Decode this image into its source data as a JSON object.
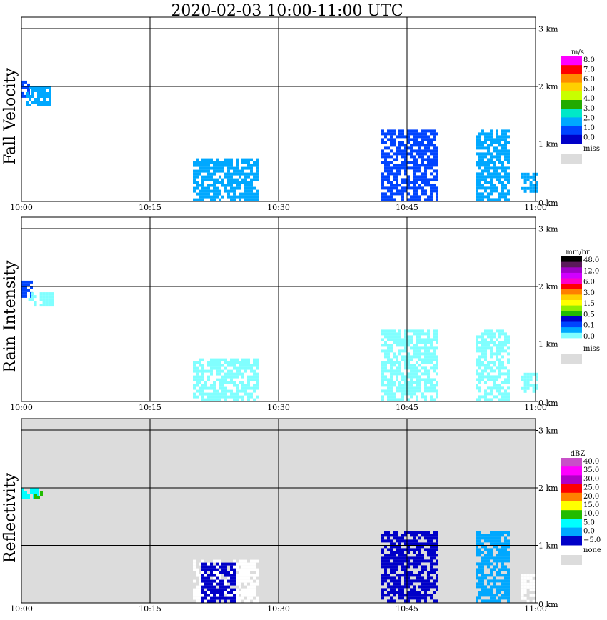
{
  "title": "2020-02-03   10:00-11:00 UTC",
  "x_ticks": [
    "10:00",
    "10:15",
    "10:30",
    "10:45",
    "11:00"
  ],
  "y_ticks": [
    "0 km",
    "1 km",
    "2 km",
    "3 km"
  ],
  "chart_data": [
    {
      "type": "heatmap",
      "panel": "Fall Velocity",
      "ylabel": "Fall Velocity",
      "x_range": [
        "10:00",
        "11:00"
      ],
      "y_range_km": [
        0,
        3.2
      ],
      "colorbar": {
        "unit": "m/s",
        "labels": [
          "8.0",
          "7.0",
          "6.0",
          "5.0",
          "4.0",
          "3.0",
          "2.0",
          "1.0",
          "0.0",
          "miss"
        ],
        "colors": [
          "#ff00ff",
          "#ff0000",
          "#ff8c00",
          "#ffd000",
          "#c8ff00",
          "#22aa00",
          "#00e8c8",
          "#00a8ff",
          "#0044ff",
          "#0000c8",
          "#dcdcdc"
        ]
      },
      "background": "#ffffff",
      "echoes": [
        {
          "t0": 0.0,
          "t1": 0.8,
          "h0": 1.85,
          "h1": 2.1,
          "color": "#0044ff"
        },
        {
          "t0": 0.5,
          "t1": 3.5,
          "h0": 1.7,
          "h1": 2.0,
          "color": "#00a8ff"
        },
        {
          "t0": 20.0,
          "t1": 27.5,
          "h0": 0.02,
          "h1": 0.75,
          "color": "#00a8ff"
        },
        {
          "t0": 42.0,
          "t1": 48.5,
          "h0": 0.05,
          "h1": 1.25,
          "color": "#0044ff"
        },
        {
          "t0": 53.0,
          "t1": 57.0,
          "h0": 0.05,
          "h1": 1.25,
          "color": "#00a8ff"
        },
        {
          "t0": 58.3,
          "t1": 60.0,
          "h0": 0.2,
          "h1": 0.5,
          "color": "#00a8ff"
        }
      ]
    },
    {
      "type": "heatmap",
      "panel": "Rain Intensity",
      "ylabel": "Rain Intensity",
      "x_range": [
        "10:00",
        "11:00"
      ],
      "y_range_km": [
        0,
        3.2
      ],
      "colorbar": {
        "unit": "mm/hr",
        "labels": [
          "48.0",
          "12.0",
          "6.0",
          "3.0",
          "1.5",
          "0.5",
          "0.1",
          "0.0",
          "miss"
        ],
        "colors": [
          "#000000",
          "#5a1a5a",
          "#a000c8",
          "#d000ff",
          "#ff00c8",
          "#ff0000",
          "#ff8000",
          "#ffd000",
          "#ffff00",
          "#90ee00",
          "#22bb00",
          "#0000c8",
          "#0044ff",
          "#00a8ff",
          "#80ffff",
          "#ffffff",
          "#dcdcdc"
        ]
      },
      "background": "#ffffff",
      "echoes": [
        {
          "t0": 0.0,
          "t1": 1.2,
          "h0": 1.85,
          "h1": 2.1,
          "color": "#0044ff"
        },
        {
          "t0": 0.8,
          "t1": 3.5,
          "h0": 1.7,
          "h1": 1.9,
          "color": "#80ffff"
        },
        {
          "t0": 20.0,
          "t1": 27.5,
          "h0": 0.02,
          "h1": 0.75,
          "color": "#80ffff"
        },
        {
          "t0": 42.0,
          "t1": 48.5,
          "h0": 0.05,
          "h1": 1.25,
          "color": "#80ffff"
        },
        {
          "t0": 53.0,
          "t1": 57.0,
          "h0": 0.05,
          "h1": 1.25,
          "color": "#80ffff"
        },
        {
          "t0": 58.3,
          "t1": 60.0,
          "h0": 0.2,
          "h1": 0.5,
          "color": "#80ffff"
        }
      ]
    },
    {
      "type": "heatmap",
      "panel": "Reflectivity",
      "ylabel": "Reflectivity",
      "x_range": [
        "10:00",
        "11:00"
      ],
      "y_range_km": [
        0,
        3.2
      ],
      "colorbar": {
        "unit": "dBZ",
        "labels": [
          "40.0",
          "35.0",
          "30.0",
          "25.0",
          "20.0",
          "15.0",
          "10.0",
          "5.0",
          "0.0",
          "−5.0",
          "none"
        ],
        "colors": [
          "#c850c8",
          "#ff00ff",
          "#b000c8",
          "#ff0000",
          "#ff8000",
          "#ffff00",
          "#22bb00",
          "#00ffff",
          "#00a8ff",
          "#0000c8",
          "#dcdcdc"
        ]
      },
      "background": "#dcdcdc",
      "echoes": [
        {
          "t0": 0.0,
          "t1": 2.0,
          "h0": 1.85,
          "h1": 2.0,
          "color": "#00ffff"
        },
        {
          "t0": 1.5,
          "t1": 2.5,
          "h0": 1.85,
          "h1": 1.95,
          "color": "#22bb00"
        },
        {
          "t0": 20.0,
          "t1": 27.5,
          "h0": 0.02,
          "h1": 0.75,
          "color": "#ffffff"
        },
        {
          "t0": 21.0,
          "t1": 25.0,
          "h0": 0.05,
          "h1": 0.7,
          "color": "#0000c8"
        },
        {
          "t0": 42.0,
          "t1": 48.5,
          "h0": 0.05,
          "h1": 1.25,
          "color": "#0000c8"
        },
        {
          "t0": 53.0,
          "t1": 57.0,
          "h0": 0.05,
          "h1": 1.25,
          "color": "#00a8ff"
        },
        {
          "t0": 58.3,
          "t1": 60.0,
          "h0": 0.05,
          "h1": 0.5,
          "color": "#ffffff"
        }
      ]
    }
  ]
}
